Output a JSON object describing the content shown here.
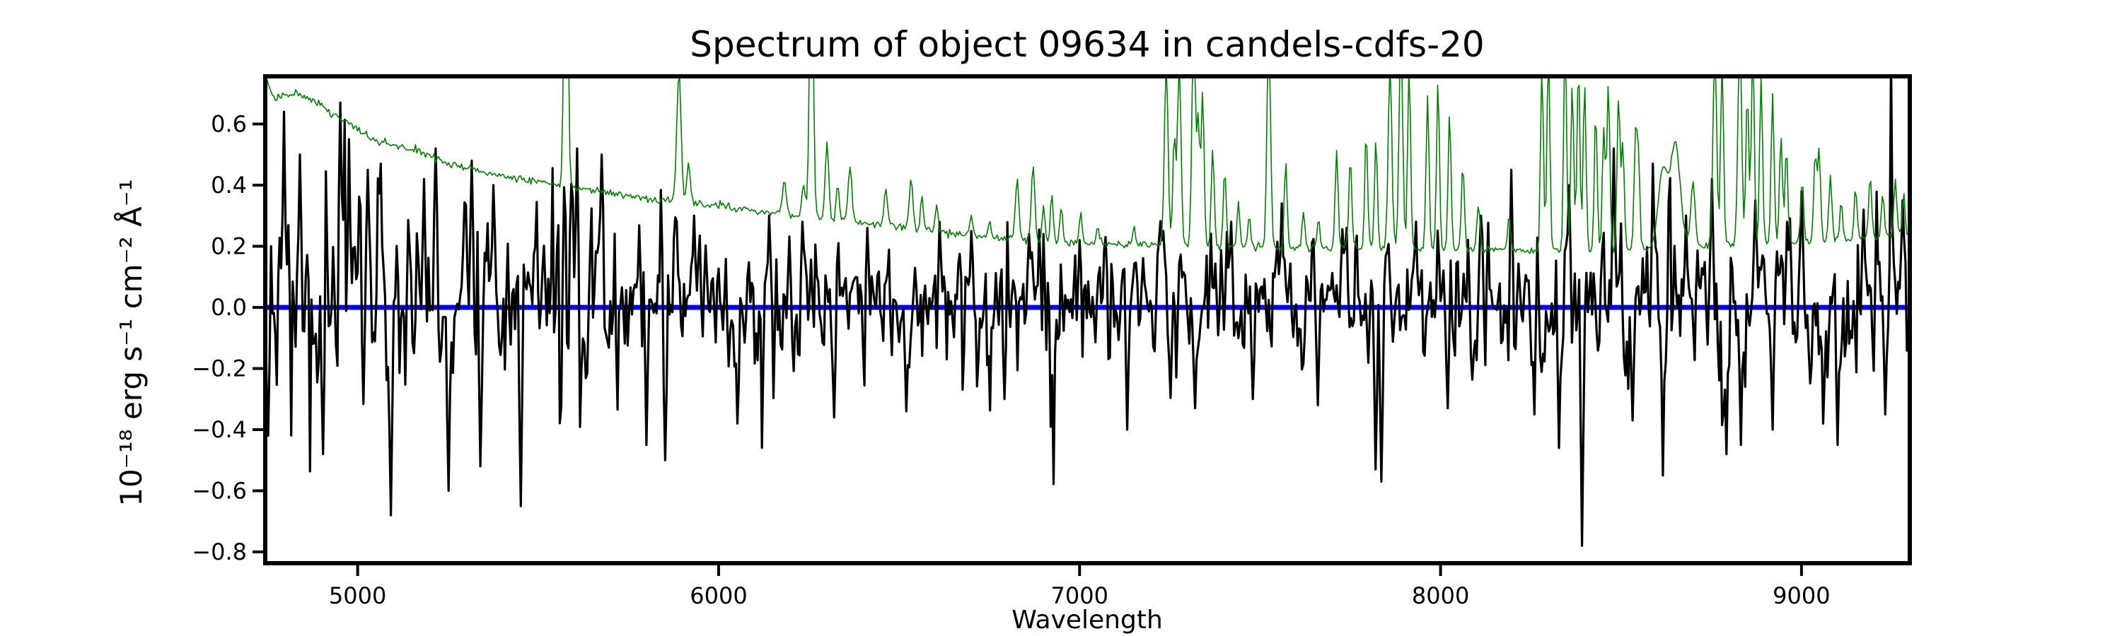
{
  "chart_data": {
    "type": "line",
    "title": "Spectrum of object 09634 in candels-cdfs-20",
    "xlabel": "Wavelength",
    "ylabel": "10⁻¹⁸ erg s⁻¹ cm⁻² Å⁻¹",
    "xlim": [
      4744,
      9300
    ],
    "ylim": [
      -0.837,
      0.756
    ],
    "xticks": [
      5000,
      6000,
      7000,
      8000,
      9000
    ],
    "yticks": [
      0.6,
      0.4,
      0.2,
      0.0,
      -0.2,
      -0.4,
      -0.6,
      -0.8
    ],
    "grid": false,
    "legend": "none",
    "background": "#ffffff",
    "axis_color": "#000000",
    "sample_step": 4,
    "seed": 77,
    "series": [
      {
        "name": "zero line",
        "kind": "hline",
        "color": "#0000ff",
        "linewidth": 7,
        "y": 0.0
      },
      {
        "name": "object spectrum",
        "kind": "noisy",
        "color": "#000000",
        "linewidth": 3.2,
        "mean": 0.015,
        "jitter_tail_prob": 0.05,
        "jitter_tail_gain": 2.1,
        "std_anchors": [
          [
            4744,
            0.2
          ],
          [
            5000,
            0.18
          ],
          [
            5400,
            0.16
          ],
          [
            5900,
            0.13
          ],
          [
            6400,
            0.115
          ],
          [
            7000,
            0.105
          ],
          [
            7600,
            0.105
          ],
          [
            8100,
            0.115
          ],
          [
            8600,
            0.12
          ],
          [
            9300,
            0.125
          ]
        ],
        "spikes": [
          [
            4750,
            -0.42
          ],
          [
            4795,
            0.64
          ],
          [
            4838,
            0.5
          ],
          [
            4905,
            -0.48
          ],
          [
            4952,
            0.67
          ],
          [
            4975,
            0.55
          ],
          [
            5028,
            0.45
          ],
          [
            5065,
            0.47
          ],
          [
            5090,
            -0.68
          ],
          [
            5183,
            0.42
          ],
          [
            5214,
            0.52
          ],
          [
            5250,
            -0.6
          ],
          [
            5316,
            0.48
          ],
          [
            5340,
            -0.52
          ],
          [
            5377,
            0.4
          ],
          [
            5450,
            -0.65
          ],
          [
            5606,
            0.52
          ],
          [
            5674,
            0.5
          ],
          [
            5800,
            -0.45
          ],
          [
            5850,
            -0.5
          ],
          [
            5930,
            0.3
          ],
          [
            6050,
            -0.38
          ],
          [
            6140,
            0.3
          ],
          [
            6230,
            0.28
          ],
          [
            6320,
            -0.36
          ],
          [
            6410,
            0.26
          ],
          [
            6520,
            -0.34
          ],
          [
            6610,
            0.28
          ],
          [
            6700,
            0.25
          ],
          [
            6790,
            -0.3
          ],
          [
            6860,
            0.24
          ],
          [
            7000,
            0.22
          ],
          [
            7130,
            -0.4
          ],
          [
            7230,
            0.25
          ],
          [
            7320,
            -0.33
          ],
          [
            7420,
            0.28
          ],
          [
            7480,
            -0.3
          ],
          [
            7560,
            0.34
          ],
          [
            7660,
            -0.32
          ],
          [
            7740,
            0.26
          ],
          [
            7821,
            -0.53
          ],
          [
            7835,
            -0.57
          ],
          [
            7930,
            0.28
          ],
          [
            8020,
            -0.33
          ],
          [
            8110,
            0.3
          ],
          [
            8197,
            0.45
          ],
          [
            8260,
            -0.35
          ],
          [
            8326,
            -0.46
          ],
          [
            8355,
            0.4
          ],
          [
            8390,
            -0.78
          ],
          [
            8480,
            0.52
          ],
          [
            8530,
            -0.37
          ],
          [
            8615,
            -0.55
          ],
          [
            8680,
            0.3
          ],
          [
            8750,
            0.42
          ],
          [
            8790,
            -0.48
          ],
          [
            8830,
            -0.45
          ],
          [
            8870,
            0.35
          ],
          [
            8920,
            -0.4
          ],
          [
            9000,
            0.38
          ],
          [
            9060,
            -0.38
          ],
          [
            9100,
            -0.45
          ],
          [
            9170,
            0.32
          ],
          [
            9230,
            -0.35
          ],
          [
            9280,
            0.35
          ]
        ]
      },
      {
        "name": "sky noise spectrum",
        "kind": "sky",
        "color": "#008000",
        "linewidth": 1.6,
        "jitter": 0.007,
        "continuum_anchors": [
          [
            4744,
            0.76
          ],
          [
            4770,
            0.68
          ],
          [
            4800,
            0.695
          ],
          [
            4830,
            0.7
          ],
          [
            4860,
            0.685
          ],
          [
            4900,
            0.66
          ],
          [
            4950,
            0.615
          ],
          [
            5000,
            0.585
          ],
          [
            5050,
            0.545
          ],
          [
            5100,
            0.53
          ],
          [
            5150,
            0.515
          ],
          [
            5200,
            0.5
          ],
          [
            5250,
            0.47
          ],
          [
            5300,
            0.455
          ],
          [
            5350,
            0.44
          ],
          [
            5400,
            0.435
          ],
          [
            5450,
            0.42
          ],
          [
            5500,
            0.41
          ],
          [
            5550,
            0.4
          ],
          [
            5600,
            0.395
          ],
          [
            5650,
            0.385
          ],
          [
            5700,
            0.375
          ],
          [
            5750,
            0.365
          ],
          [
            5800,
            0.355
          ],
          [
            5850,
            0.35
          ],
          [
            5900,
            0.345
          ],
          [
            5950,
            0.34
          ],
          [
            6000,
            0.335
          ],
          [
            6050,
            0.325
          ],
          [
            6100,
            0.315
          ],
          [
            6150,
            0.31
          ],
          [
            6200,
            0.3
          ],
          [
            6250,
            0.295
          ],
          [
            6300,
            0.29
          ],
          [
            6350,
            0.285
          ],
          [
            6400,
            0.275
          ],
          [
            6450,
            0.27
          ],
          [
            6500,
            0.265
          ],
          [
            6550,
            0.255
          ],
          [
            6600,
            0.25
          ],
          [
            6650,
            0.24
          ],
          [
            6700,
            0.235
          ],
          [
            6750,
            0.23
          ],
          [
            6800,
            0.225
          ],
          [
            6850,
            0.22
          ],
          [
            6900,
            0.215
          ],
          [
            6950,
            0.21
          ],
          [
            7000,
            0.21
          ],
          [
            7100,
            0.205
          ],
          [
            7200,
            0.205
          ],
          [
            7300,
            0.2
          ],
          [
            7400,
            0.2
          ],
          [
            7500,
            0.195
          ],
          [
            7600,
            0.195
          ],
          [
            7700,
            0.195
          ],
          [
            7800,
            0.195
          ],
          [
            7900,
            0.195
          ],
          [
            8000,
            0.19
          ],
          [
            8100,
            0.19
          ],
          [
            8200,
            0.185
          ],
          [
            8300,
            0.185
          ],
          [
            8400,
            0.185
          ],
          [
            8500,
            0.19
          ],
          [
            8600,
            0.195
          ],
          [
            8700,
            0.2
          ],
          [
            8800,
            0.205
          ],
          [
            8900,
            0.21
          ],
          [
            9000,
            0.215
          ],
          [
            9100,
            0.22
          ],
          [
            9200,
            0.23
          ],
          [
            9300,
            0.235
          ]
        ],
        "sky_lines": [
          [
            5577,
            1.2,
            5
          ],
          [
            5890,
            0.42,
            6
          ],
          [
            5917,
            0.12,
            5
          ],
          [
            6182,
            0.12,
            5
          ],
          [
            6235,
            0.1,
            5
          ],
          [
            6257,
            1.0,
            5
          ],
          [
            6300,
            0.24,
            5
          ],
          [
            6330,
            0.12,
            4
          ],
          [
            6364,
            0.18,
            5
          ],
          [
            6463,
            0.12,
            5
          ],
          [
            6533,
            0.16,
            5
          ],
          [
            6563,
            0.1,
            4
          ],
          [
            6604,
            0.08,
            4
          ],
          [
            6700,
            0.06,
            4
          ],
          [
            6750,
            0.05,
            4
          ],
          [
            6827,
            0.2,
            5
          ],
          [
            6871,
            0.25,
            5
          ],
          [
            6900,
            0.12,
            4
          ],
          [
            6923,
            0.16,
            4
          ],
          [
            6949,
            0.12,
            4
          ],
          [
            7003,
            0.1,
            4
          ],
          [
            7050,
            0.06,
            4
          ],
          [
            7150,
            0.05,
            4
          ],
          [
            7240,
            0.6,
            5
          ],
          [
            7262,
            0.35,
            4
          ],
          [
            7276,
            0.6,
            5
          ],
          [
            7316,
            0.7,
            5
          ],
          [
            7329,
            0.4,
            4
          ],
          [
            7341,
            0.5,
            4
          ],
          [
            7369,
            0.32,
            4
          ],
          [
            7402,
            0.25,
            4
          ],
          [
            7440,
            0.15,
            4
          ],
          [
            7470,
            0.1,
            4
          ],
          [
            7524,
            0.7,
            5
          ],
          [
            7571,
            0.28,
            4
          ],
          [
            7620,
            0.12,
            4
          ],
          [
            7662,
            0.1,
            4
          ],
          [
            7712,
            0.32,
            4
          ],
          [
            7750,
            0.3,
            4
          ],
          [
            7794,
            0.38,
            4
          ],
          [
            7821,
            0.35,
            4
          ],
          [
            7860,
            0.6,
            5
          ],
          [
            7890,
            0.7,
            5
          ],
          [
            7913,
            0.6,
            4
          ],
          [
            7964,
            0.5,
            4
          ],
          [
            7993,
            0.55,
            4
          ],
          [
            8025,
            0.45,
            4
          ],
          [
            8062,
            0.28,
            4
          ],
          [
            8105,
            0.15,
            4
          ],
          [
            8190,
            0.12,
            4
          ],
          [
            8281,
            0.6,
            4
          ],
          [
            8299,
            0.65,
            4
          ],
          [
            8345,
            0.7,
            4
          ],
          [
            8365,
            0.55,
            4
          ],
          [
            8382,
            0.6,
            4
          ],
          [
            8399,
            0.55,
            4
          ],
          [
            8430,
            0.45,
            4
          ],
          [
            8452,
            0.4,
            4
          ],
          [
            8465,
            0.55,
            4
          ],
          [
            8493,
            0.5,
            4
          ],
          [
            8505,
            0.35,
            4
          ],
          [
            8540,
            0.35,
            4
          ],
          [
            8548,
            0.3,
            4
          ],
          [
            8615,
            0.25,
            12
          ],
          [
            8650,
            0.34,
            14
          ],
          [
            8699,
            0.2,
            6
          ],
          [
            8760,
            0.65,
            5
          ],
          [
            8780,
            0.6,
            4
          ],
          [
            8829,
            0.7,
            5
          ],
          [
            8850,
            0.5,
            4
          ],
          [
            8865,
            0.65,
            4
          ],
          [
            8888,
            0.55,
            4
          ],
          [
            8920,
            0.5,
            4
          ],
          [
            8943,
            0.35,
            4
          ],
          [
            8958,
            0.3,
            4
          ],
          [
            9002,
            0.2,
            4
          ],
          [
            9038,
            0.28,
            4
          ],
          [
            9049,
            0.3,
            4
          ],
          [
            9080,
            0.22,
            4
          ],
          [
            9110,
            0.12,
            4
          ],
          [
            9150,
            0.16,
            4
          ],
          [
            9190,
            0.2,
            4
          ],
          [
            9225,
            0.14,
            4
          ],
          [
            9260,
            0.18,
            4
          ],
          [
            9283,
            0.14,
            4
          ],
          [
            9310,
            0.2,
            4
          ]
        ]
      }
    ]
  }
}
